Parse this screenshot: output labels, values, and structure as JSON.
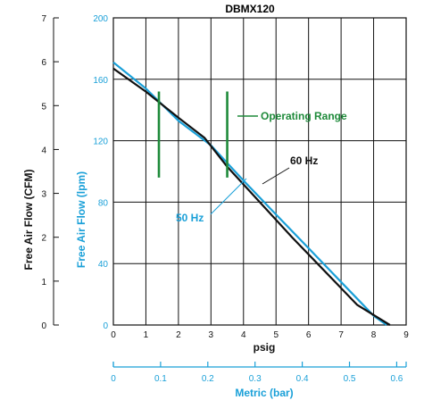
{
  "chart_data": {
    "type": "line",
    "title": "DBMX120",
    "xlabel": "psig",
    "xlim": [
      0,
      9
    ],
    "x_ticks": [
      "0",
      "1",
      "2",
      "3",
      "4",
      "5",
      "6",
      "7",
      "8",
      "9"
    ],
    "ylabel_cfm": "Free Air Flow (CFM)",
    "ylim_cfm": [
      0,
      7
    ],
    "y_ticks_cfm": [
      "0",
      "1",
      "2",
      "3",
      "4",
      "5",
      "6",
      "7"
    ],
    "ylabel_lpm": "Free Air Flow (lpm)",
    "ylim_lpm": [
      0,
      200
    ],
    "y_ticks_lpm": [
      "0",
      "40",
      "80",
      "120",
      "160",
      "200"
    ],
    "x2label": "Metric (bar)",
    "x2lim": [
      0,
      0.62
    ],
    "x2_ticks": [
      "0",
      "0.1",
      "0.2",
      "0.3",
      "0.4",
      "0.5",
      "0.6"
    ],
    "grid": true,
    "series": [
      {
        "name": "60 Hz",
        "color": "#111111",
        "x": [
          0,
          1,
          2,
          2.8,
          3.5,
          4.5,
          5.5,
          6.5,
          7.5,
          8.5
        ],
        "y_lpm": [
          167,
          152,
          135,
          122,
          103,
          80,
          57,
          35,
          13,
          0
        ]
      },
      {
        "name": "50 Hz",
        "color": "#1aa0d8",
        "x": [
          0,
          1,
          2,
          3,
          4,
          5,
          6,
          7,
          8,
          8.4
        ],
        "y_lpm": [
          171,
          154,
          133,
          117,
          94,
          72,
          50,
          28,
          6,
          0
        ]
      }
    ],
    "annotations": [
      {
        "text": "Operating Range",
        "color": "#1e8a3a"
      }
    ],
    "operating_range": {
      "color": "#1e8a3a",
      "bars": [
        {
          "x": 1.4,
          "y_lpm": [
            96,
            152
          ]
        },
        {
          "x": 3.5,
          "y_lpm": [
            96,
            152
          ]
        }
      ]
    }
  }
}
